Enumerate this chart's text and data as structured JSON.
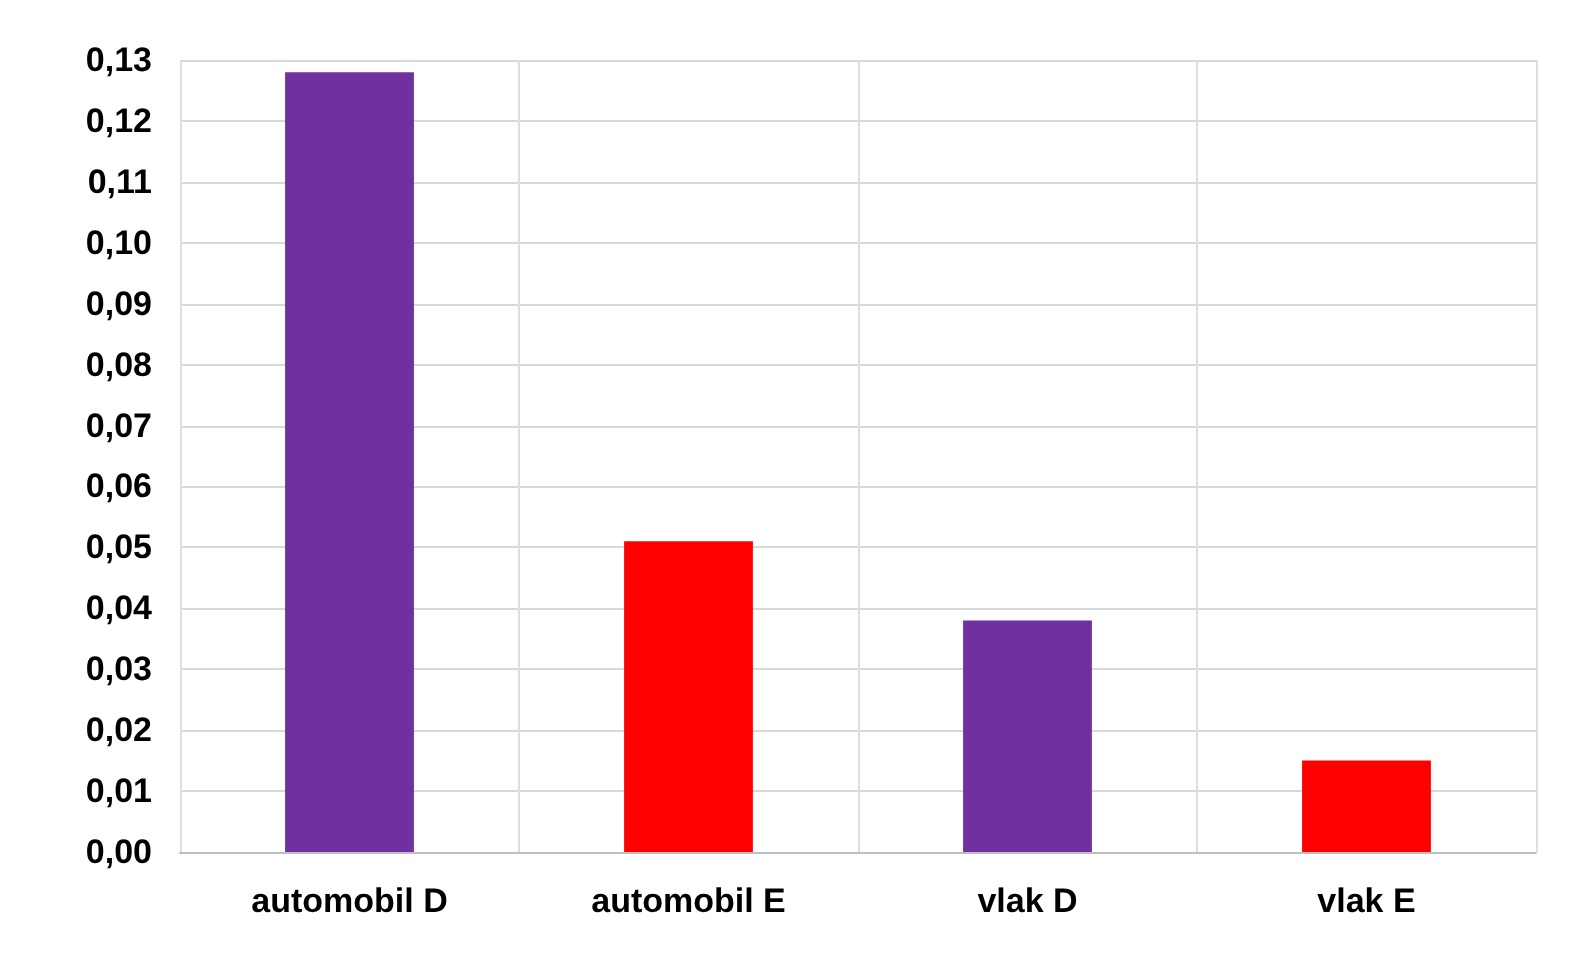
{
  "chart_data": {
    "type": "bar",
    "categories": [
      "automobil D",
      "automobil E",
      "vlak D",
      "vlak E"
    ],
    "values": [
      0.128,
      0.051,
      0.038,
      0.015
    ],
    "colors": [
      "#7030a0",
      "#ff0000",
      "#7030a0",
      "#ff0000"
    ],
    "ylim": [
      0,
      0.13
    ],
    "yticks": [
      {
        "value": 0,
        "label": "0,00"
      },
      {
        "value": 0.01,
        "label": "0,01"
      },
      {
        "value": 0.02,
        "label": "0,02"
      },
      {
        "value": 0.03,
        "label": "0,03"
      },
      {
        "value": 0.04,
        "label": "0,04"
      },
      {
        "value": 0.05,
        "label": "0,05"
      },
      {
        "value": 0.06,
        "label": "0,06"
      },
      {
        "value": 0.07,
        "label": "0,07"
      },
      {
        "value": 0.08,
        "label": "0,08"
      },
      {
        "value": 0.09,
        "label": "0,09"
      },
      {
        "value": 0.1,
        "label": "0,10"
      },
      {
        "value": 0.11,
        "label": "0,11"
      },
      {
        "value": 0.12,
        "label": "0,12"
      },
      {
        "value": 0.13,
        "label": "0,13"
      }
    ],
    "grid": true
  }
}
